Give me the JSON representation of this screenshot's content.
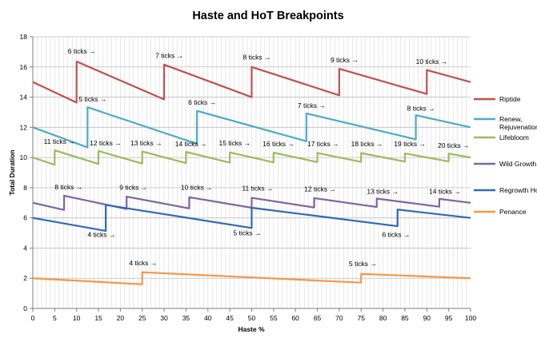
{
  "chart_data": {
    "type": "line",
    "title": "Haste and HoT Breakpoints",
    "xlabel": "Haste %",
    "ylabel": "Total Duration",
    "xlim": [
      0,
      100
    ],
    "ylim": [
      0,
      18
    ],
    "x_ticks": [
      0,
      5,
      10,
      15,
      20,
      25,
      30,
      35,
      40,
      45,
      50,
      55,
      60,
      65,
      70,
      75,
      80,
      85,
      90,
      95,
      100
    ],
    "y_ticks": [
      0,
      2,
      4,
      6,
      8,
      10,
      12,
      14,
      16,
      18
    ],
    "grid": "on",
    "legend_position": "right",
    "series": [
      {
        "name": "Riptide",
        "color": "#c0504d",
        "points": [
          [
            0,
            15.0
          ],
          [
            9.99,
            13.64
          ],
          [
            10,
            16.36
          ],
          [
            29.99,
            13.85
          ],
          [
            30,
            16.15
          ],
          [
            49.99,
            14.0
          ],
          [
            50,
            16.0
          ],
          [
            69.99,
            14.12
          ],
          [
            70,
            15.88
          ],
          [
            89.99,
            14.21
          ],
          [
            90,
            15.79
          ],
          [
            100,
            15.0
          ]
        ]
      },
      {
        "name": "Renew, Rejuvenation",
        "color": "#4bacc6",
        "points": [
          [
            0,
            12.0
          ],
          [
            12.49,
            10.67
          ],
          [
            12.5,
            13.33
          ],
          [
            37.49,
            10.91
          ],
          [
            37.5,
            13.09
          ],
          [
            62.49,
            11.08
          ],
          [
            62.5,
            12.92
          ],
          [
            87.49,
            11.2
          ],
          [
            87.5,
            12.8
          ],
          [
            100,
            12.0
          ]
        ]
      },
      {
        "name": "Lifebloom",
        "color": "#9bbb59",
        "points": [
          [
            0,
            10.0
          ],
          [
            4.99,
            9.52
          ],
          [
            5,
            10.48
          ],
          [
            14.99,
            9.57
          ],
          [
            15,
            10.43
          ],
          [
            24.99,
            9.6
          ],
          [
            25,
            10.4
          ],
          [
            34.99,
            9.63
          ],
          [
            35,
            10.37
          ],
          [
            44.99,
            9.66
          ],
          [
            45,
            10.34
          ],
          [
            54.99,
            9.68
          ],
          [
            55,
            10.32
          ],
          [
            64.99,
            9.7
          ],
          [
            65,
            10.3
          ],
          [
            74.99,
            9.71
          ],
          [
            75,
            10.29
          ],
          [
            84.99,
            9.73
          ],
          [
            85,
            10.27
          ],
          [
            94.99,
            9.74
          ],
          [
            95,
            10.26
          ],
          [
            100,
            10.0
          ]
        ]
      },
      {
        "name": "Wild Growth",
        "color": "#8064a2",
        "points": [
          [
            0,
            7.0
          ],
          [
            7.14,
            6.53
          ],
          [
            7.15,
            7.47
          ],
          [
            21.42,
            6.59
          ],
          [
            21.43,
            7.41
          ],
          [
            35.71,
            6.63
          ],
          [
            35.72,
            7.37
          ],
          [
            49.99,
            6.67
          ],
          [
            50,
            7.33
          ],
          [
            64.28,
            6.69
          ],
          [
            64.29,
            7.31
          ],
          [
            78.56,
            6.72
          ],
          [
            78.57,
            7.28
          ],
          [
            92.85,
            6.74
          ],
          [
            92.86,
            7.26
          ],
          [
            100,
            7.0
          ]
        ]
      },
      {
        "name": "Regrowth HoT",
        "color": "#2e6ab5",
        "points": [
          [
            0,
            6.0
          ],
          [
            16.65,
            5.14
          ],
          [
            16.67,
            6.86
          ],
          [
            49.99,
            5.33
          ],
          [
            50,
            6.67
          ],
          [
            83.32,
            5.45
          ],
          [
            83.33,
            6.55
          ],
          [
            100,
            6.0
          ]
        ]
      },
      {
        "name": "Penance",
        "color": "#f79646",
        "points": [
          [
            0,
            2.0
          ],
          [
            24.99,
            1.6
          ],
          [
            25,
            2.4
          ],
          [
            74.99,
            1.71
          ],
          [
            75,
            2.29
          ],
          [
            100,
            2.0
          ]
        ]
      }
    ],
    "annotations": [
      {
        "text": "6 ticks →",
        "x": 8.0,
        "y": 16.9
      },
      {
        "text": "7 ticks →",
        "x": 28.0,
        "y": 16.6
      },
      {
        "text": "8 ticks →",
        "x": 48.0,
        "y": 16.5
      },
      {
        "text": "9 ticks →",
        "x": 68.0,
        "y": 16.3
      },
      {
        "text": "10 ticks →",
        "x": 87.5,
        "y": 16.2
      },
      {
        "text": "5 ticks →",
        "x": 10.5,
        "y": 13.7
      },
      {
        "text": "6 ticks →",
        "x": 35.5,
        "y": 13.5
      },
      {
        "text": "7 ticks →",
        "x": 60.5,
        "y": 13.3
      },
      {
        "text": "8 ticks →",
        "x": 85.5,
        "y": 13.1
      },
      {
        "text": "11 ticks →",
        "x": 2.5,
        "y": 10.9
      },
      {
        "text": "12 ticks →",
        "x": 13.0,
        "y": 10.8
      },
      {
        "text": "13 ticks →",
        "x": 22.3,
        "y": 10.8
      },
      {
        "text": "14 ticks →",
        "x": 32.5,
        "y": 10.75
      },
      {
        "text": "15 ticks →",
        "x": 42.5,
        "y": 10.8
      },
      {
        "text": "16 ticks →",
        "x": 52.5,
        "y": 10.75
      },
      {
        "text": "17 ticks →",
        "x": 62.7,
        "y": 10.75
      },
      {
        "text": "18 ticks →",
        "x": 72.7,
        "y": 10.75
      },
      {
        "text": "19 ticks →",
        "x": 82.5,
        "y": 10.75
      },
      {
        "text": "20 ticks →",
        "x": 92.5,
        "y": 10.65
      },
      {
        "text": "8 ticks →",
        "x": 5.0,
        "y": 7.9
      },
      {
        "text": "9 ticks →",
        "x": 19.8,
        "y": 7.85
      },
      {
        "text": "10 ticks →",
        "x": 33.8,
        "y": 7.85
      },
      {
        "text": "11 ticks →",
        "x": 47.8,
        "y": 7.8
      },
      {
        "text": "12 ticks →",
        "x": 62.0,
        "y": 7.75
      },
      {
        "text": "13 ticks →",
        "x": 76.3,
        "y": 7.6
      },
      {
        "text": "14 ticks →",
        "x": 90.5,
        "y": 7.6
      },
      {
        "text": "4 ticks →",
        "x": 12.5,
        "y": 4.75
      },
      {
        "text": "5 ticks →",
        "x": 45.8,
        "y": 4.85
      },
      {
        "text": "6 ticks →",
        "x": 79.8,
        "y": 4.75
      },
      {
        "text": "4 ticks →",
        "x": 22.0,
        "y": 2.85
      },
      {
        "text": "5 ticks →",
        "x": 72.2,
        "y": 2.8
      }
    ]
  }
}
